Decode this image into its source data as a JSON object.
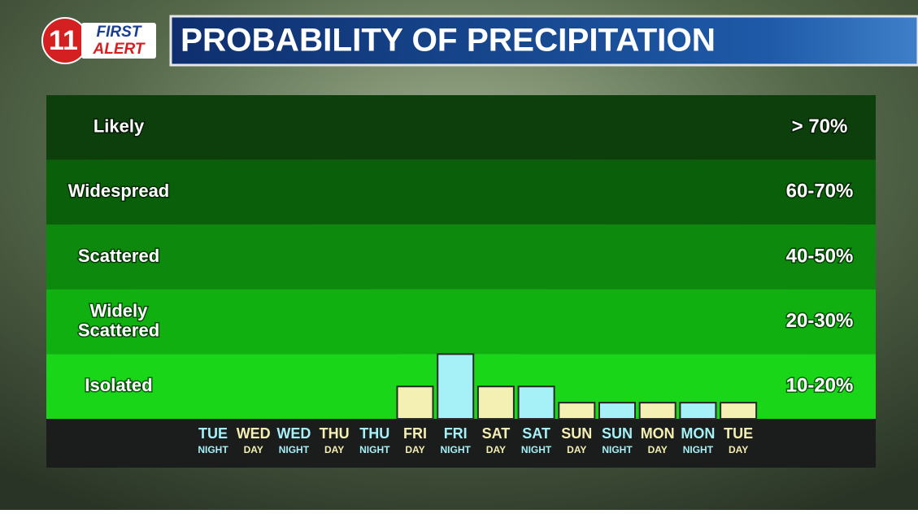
{
  "logo": {
    "number": "11",
    "line1": "FIRST",
    "line2": "ALERT"
  },
  "chart_data": {
    "type": "bar",
    "title": "PROBABILITY OF PRECIPITATION",
    "bands": [
      {
        "label": "Likely",
        "range": "> 70%",
        "color": "#0c3f0c"
      },
      {
        "label": "Widespread",
        "range": "60-70%",
        "color": "#0a600a"
      },
      {
        "label": "Scattered",
        "range": "40-50%",
        "color": "#0d890d"
      },
      {
        "label": "Widely Scattered",
        "range": "20-30%",
        "color": "#11b011"
      },
      {
        "label": "Isolated",
        "range": "10-20%",
        "color": "#19d619"
      }
    ],
    "categories": [
      {
        "day": "TUE",
        "period": "NIGHT"
      },
      {
        "day": "WED",
        "period": "DAY"
      },
      {
        "day": "WED",
        "period": "NIGHT"
      },
      {
        "day": "THU",
        "period": "DAY"
      },
      {
        "day": "THU",
        "period": "NIGHT"
      },
      {
        "day": "FRI",
        "period": "DAY"
      },
      {
        "day": "FRI",
        "period": "NIGHT"
      },
      {
        "day": "SAT",
        "period": "DAY"
      },
      {
        "day": "SAT",
        "period": "NIGHT"
      },
      {
        "day": "SUN",
        "period": "DAY"
      },
      {
        "day": "SUN",
        "period": "NIGHT"
      },
      {
        "day": "MON",
        "period": "DAY"
      },
      {
        "day": "MON",
        "period": "NIGHT"
      },
      {
        "day": "TUE",
        "period": "DAY"
      }
    ],
    "values": [
      0,
      0,
      0,
      0,
      0,
      10,
      20,
      10,
      10,
      5,
      5,
      5,
      5,
      5
    ],
    "bar_colors": {
      "DAY": "#f4efb2",
      "NIGHT": "#a6f1f7"
    },
    "ylim": [
      0,
      100
    ]
  }
}
